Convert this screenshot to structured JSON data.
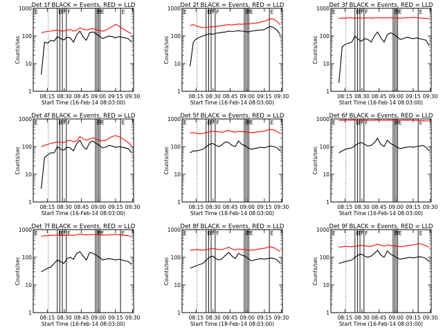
{
  "chart_data": [
    {
      "type": "line",
      "title": "Det 1f BLACK = Events, RED = LLD",
      "xlabel": "Start Time (16-Feb-14 08:03:00)",
      "ylabel": "Counts/sec",
      "ylim": [
        1,
        1000
      ],
      "yscale": "log",
      "xticks": [
        "08:15",
        "08:30",
        "08:45",
        "09:00",
        "09:15",
        "09:30"
      ],
      "yticks": [
        "1",
        "10",
        "100",
        "1000"
      ],
      "markers": [
        "E",
        "F",
        "F",
        "F",
        "E",
        "F",
        "F",
        "E",
        "E"
      ],
      "series": [
        {
          "color": "#000000",
          "values": [
            4,
            60,
            55,
            70,
            65,
            95,
            80,
            72,
            90,
            85,
            60,
            110,
            150,
            90,
            70,
            130,
            140,
            120,
            100,
            80,
            90,
            100,
            95,
            85,
            95,
            90,
            85,
            80,
            60
          ]
        },
        {
          "color": "#ff0000",
          "values": [
            130,
            140,
            145,
            150,
            160,
            160,
            155,
            150,
            165,
            170,
            150,
            160,
            200,
            175,
            165,
            175,
            185,
            170,
            160,
            150,
            160,
            190,
            220,
            260,
            230,
            190,
            160,
            140,
            120
          ]
        }
      ]
    },
    {
      "type": "line",
      "title": "Det 2f BLACK = Events, RED = LLD",
      "xlabel": "Start Time (16-Feb-14 08:03:00)",
      "ylabel": "Counts/sec",
      "ylim": [
        1,
        1000
      ],
      "yscale": "log",
      "xticks": [
        "08:15",
        "08:30",
        "08:45",
        "09:00",
        "09:15",
        "09:30"
      ],
      "yticks": [
        "1",
        "10",
        "100",
        "1000"
      ],
      "markers": [
        "E",
        "F",
        "F",
        "F",
        "E",
        "F",
        "F",
        "E",
        "E"
      ],
      "series": [
        {
          "color": "#000000",
          "values": [
            8,
            60,
            80,
            90,
            100,
            110,
            120,
            115,
            125,
            130,
            135,
            140,
            150,
            145,
            150,
            155,
            150,
            145,
            140,
            150,
            155,
            160,
            165,
            170,
            200,
            220,
            200,
            160,
            110
          ]
        },
        {
          "color": "#ff0000",
          "values": [
            240,
            260,
            230,
            210,
            200,
            205,
            210,
            215,
            220,
            230,
            240,
            250,
            255,
            250,
            260,
            270,
            265,
            270,
            275,
            280,
            290,
            300,
            320,
            340,
            380,
            420,
            400,
            330,
            250
          ]
        }
      ]
    },
    {
      "type": "line",
      "title": "Det 3f BLACK = Events, RED = LLD",
      "xlabel": "Start Time (16-Feb-14 08:03:00)",
      "ylabel": "Counts/sec",
      "ylim": [
        1,
        1000
      ],
      "yscale": "log",
      "xticks": [
        "08:15",
        "08:30",
        "08:45",
        "09:00",
        "09:15",
        "09:30"
      ],
      "yticks": [
        "1",
        "10",
        "100",
        "1000"
      ],
      "markers": [
        "E",
        "F",
        "F",
        "F",
        "E",
        "F",
        "F",
        "E",
        "E"
      ],
      "series": [
        {
          "color": "#000000",
          "values": [
            2,
            40,
            50,
            55,
            60,
            100,
            75,
            65,
            80,
            75,
            60,
            100,
            140,
            85,
            60,
            110,
            130,
            115,
            95,
            75,
            80,
            90,
            85,
            80,
            85,
            80,
            75,
            70,
            45
          ]
        },
        {
          "color": "#ff0000",
          "values": [
            430,
            450,
            440,
            460,
            450,
            440,
            450,
            445,
            450,
            455,
            440,
            450,
            460,
            455,
            450,
            455,
            460,
            450,
            445,
            440,
            450,
            455,
            460,
            470,
            460,
            450,
            440,
            430,
            420
          ]
        }
      ]
    },
    {
      "type": "line",
      "title": "Det 4f BLACK = Events, RED = LLD",
      "xlabel": "Start Time (16-Feb-14 08:03:00)",
      "ylabel": "Counts/sec",
      "ylim": [
        1,
        1000
      ],
      "yscale": "log",
      "xticks": [
        "08:15",
        "08:30",
        "08:45",
        "09:00",
        "09:15",
        "09:30"
      ],
      "yticks": [
        "1",
        "10",
        "100",
        "1000"
      ],
      "markers": [
        "E",
        "F",
        "F",
        "F",
        "E",
        "F",
        "F",
        "E",
        "E"
      ],
      "series": [
        {
          "color": "#000000",
          "values": [
            3,
            40,
            50,
            60,
            60,
            100,
            80,
            75,
            95,
            90,
            70,
            130,
            170,
            100,
            80,
            140,
            160,
            130,
            110,
            90,
            95,
            110,
            105,
            95,
            100,
            95,
            90,
            85,
            60
          ]
        },
        {
          "color": "#ff0000",
          "values": [
            100,
            110,
            120,
            130,
            140,
            150,
            145,
            140,
            160,
            170,
            150,
            160,
            230,
            190,
            170,
            190,
            210,
            185,
            170,
            160,
            170,
            200,
            230,
            250,
            230,
            200,
            170,
            140,
            110
          ]
        }
      ]
    },
    {
      "type": "line",
      "title": "Det 5f BLACK = Events, RED = LLD",
      "xlabel": "Start Time (18-Feb-14 08:03:00)",
      "ylabel": "Counts/sec",
      "ylim": [
        1,
        1000
      ],
      "yscale": "log",
      "xticks": [
        "08:15",
        "08:30",
        "08:45",
        "09:00",
        "09:15",
        "09:30"
      ],
      "yticks": [
        "1",
        "10",
        "100",
        "1000"
      ],
      "markers": [
        "E",
        "F",
        "F",
        "F",
        "E",
        "F",
        "F",
        "E",
        "E"
      ],
      "series": [
        {
          "color": "#000000",
          "values": [
            60,
            70,
            70,
            75,
            80,
            100,
            120,
            130,
            110,
            100,
            120,
            150,
            140,
            110,
            100,
            160,
            120,
            110,
            90,
            80,
            85,
            90,
            95,
            90,
            100,
            105,
            100,
            90,
            70
          ]
        },
        {
          "color": "#ff0000",
          "values": [
            310,
            320,
            300,
            290,
            300,
            320,
            340,
            360,
            350,
            340,
            330,
            360,
            380,
            350,
            330,
            360,
            350,
            340,
            330,
            320,
            330,
            340,
            350,
            360,
            400,
            420,
            400,
            350,
            300
          ]
        }
      ]
    },
    {
      "type": "line",
      "title": "Det 6f BLACK = Events, RED = LLD",
      "xlabel": "Start Time (16-Feb-14 08:03:00)",
      "ylabel": "Counts/sec",
      "ylim": [
        1,
        1000
      ],
      "yscale": "log",
      "xticks": [
        "08:15",
        "08:30",
        "08:45",
        "09:00",
        "09:15",
        "09:30"
      ],
      "yticks": [
        "1",
        "10",
        "100",
        "1000"
      ],
      "markers": [
        "E",
        "F",
        "F",
        "F",
        "E",
        "F",
        "F",
        "E",
        "E"
      ],
      "series": [
        {
          "color": "#000000",
          "values": [
            60,
            70,
            80,
            85,
            90,
            110,
            130,
            140,
            120,
            105,
            110,
            140,
            200,
            120,
            100,
            170,
            130,
            115,
            95,
            85,
            90,
            95,
            100,
            95,
            100,
            105,
            110,
            95,
            70
          ]
        },
        {
          "color": "#ff0000",
          "values": [
            880,
            900,
            890,
            900,
            910,
            900,
            890,
            900,
            905,
            900,
            890,
            900,
            910,
            900,
            890,
            900,
            905,
            900,
            895,
            890,
            900,
            905,
            900,
            890,
            880,
            870,
            860,
            850,
            840
          ]
        }
      ]
    },
    {
      "type": "line",
      "title": "Det 7f BLACK = Events, RED = LLD",
      "xlabel": "Start Time (16-Feb-14 08:03:00)",
      "ylabel": "Counts/sec",
      "ylim": [
        1,
        1000
      ],
      "yscale": "log",
      "xticks": [
        "08:15",
        "08:30",
        "08:45",
        "09:00",
        "09:15",
        "09:30"
      ],
      "yticks": [
        "1",
        "10",
        "100",
        "1000"
      ],
      "markers": [
        "E",
        "F",
        "F",
        "F",
        "E",
        "F",
        "F",
        "E",
        "E"
      ],
      "series": [
        {
          "color": "#000000",
          "values": [
            30,
            35,
            40,
            45,
            60,
            80,
            70,
            60,
            90,
            100,
            85,
            140,
            160,
            110,
            80,
            150,
            140,
            120,
            100,
            80,
            85,
            90,
            85,
            80,
            85,
            80,
            75,
            70,
            55
          ]
        },
        {
          "color": "#ff0000",
          "values": [
            580,
            600,
            610,
            620,
            630,
            640,
            620,
            610,
            630,
            640,
            620,
            650,
            700,
            660,
            640,
            660,
            670,
            650,
            640,
            630,
            640,
            650,
            660,
            670,
            660,
            640,
            620,
            600,
            560
          ]
        }
      ]
    },
    {
      "type": "line",
      "title": "Det 8f BLACK = Events, RED = LLD",
      "xlabel": "Start Time (18-Feb-14 08:03:00)",
      "ylabel": "Counts/sec",
      "ylim": [
        1,
        1000
      ],
      "yscale": "log",
      "xticks": [
        "08:15",
        "08:30",
        "08:45",
        "09:00",
        "09:15",
        "09:30"
      ],
      "yticks": [
        "1",
        "10",
        "100",
        "1000"
      ],
      "markers": [
        "E",
        "F",
        "F",
        "F",
        "E",
        "F",
        "F",
        "E",
        "E"
      ],
      "series": [
        {
          "color": "#000000",
          "values": [
            40,
            45,
            50,
            55,
            60,
            80,
            100,
            110,
            90,
            80,
            90,
            120,
            150,
            110,
            90,
            140,
            120,
            110,
            90,
            75,
            80,
            85,
            90,
            85,
            90,
            95,
            90,
            80,
            60
          ]
        },
        {
          "color": "#ff0000",
          "values": [
            180,
            185,
            190,
            185,
            180,
            190,
            200,
            210,
            200,
            190,
            190,
            210,
            230,
            200,
            185,
            200,
            195,
            190,
            185,
            180,
            185,
            195,
            205,
            210,
            230,
            240,
            220,
            190,
            160
          ]
        }
      ]
    },
    {
      "type": "line",
      "title": "Det 9f BLACK = Events, RED = LLD",
      "xlabel": "Start Time (16-Feb-14 08:03:00)",
      "ylabel": "Counts/sec",
      "ylim": [
        1,
        1000
      ],
      "yscale": "log",
      "xticks": [
        "08:15",
        "08:30",
        "08:45",
        "09:00",
        "09:15",
        "09:30"
      ],
      "yticks": [
        "1",
        "10",
        "100",
        "1000"
      ],
      "markers": [
        "E",
        "F",
        "F",
        "F",
        "E",
        "F",
        "F",
        "E",
        "E"
      ],
      "series": [
        {
          "color": "#000000",
          "values": [
            60,
            65,
            70,
            75,
            80,
            100,
            120,
            130,
            110,
            100,
            110,
            140,
            180,
            120,
            100,
            170,
            130,
            115,
            95,
            85,
            90,
            95,
            100,
            95,
            100,
            105,
            100,
            90,
            70
          ]
        },
        {
          "color": "#ff0000",
          "values": [
            230,
            240,
            250,
            245,
            240,
            250,
            260,
            270,
            260,
            250,
            250,
            270,
            300,
            270,
            250,
            280,
            270,
            260,
            250,
            240,
            250,
            260,
            270,
            280,
            300,
            310,
            290,
            260,
            230
          ]
        }
      ]
    }
  ]
}
